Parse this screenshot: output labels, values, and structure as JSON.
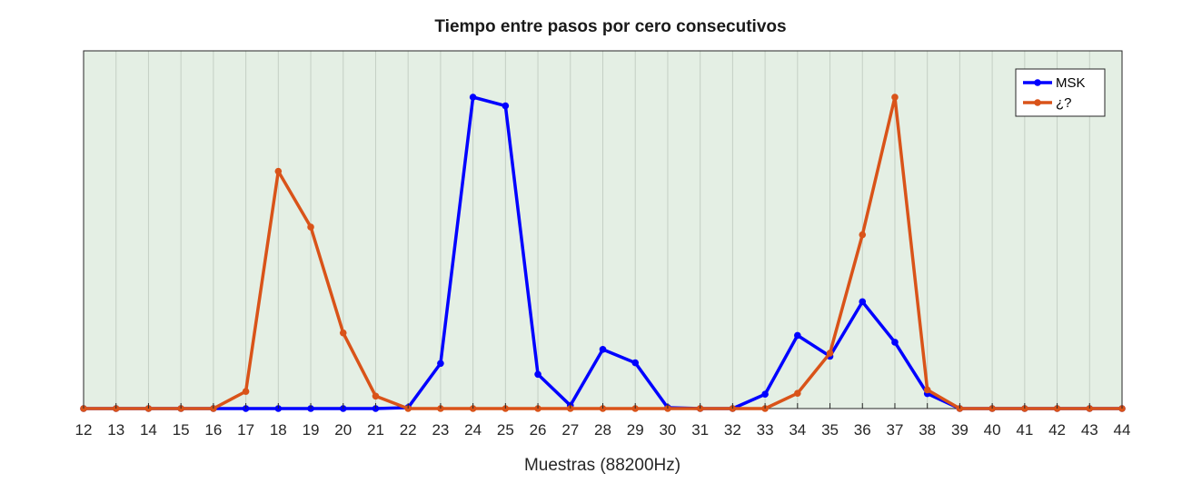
{
  "chart_data": {
    "type": "line",
    "title": "Tiempo entre pasos por cero consecutivos",
    "xlabel": "Muestras (88200Hz)",
    "ylabel": "",
    "xlim": [
      12,
      44
    ],
    "ylim": [
      0,
      1
    ],
    "x": [
      12,
      13,
      14,
      15,
      16,
      17,
      18,
      19,
      20,
      21,
      22,
      23,
      24,
      25,
      26,
      27,
      28,
      29,
      30,
      31,
      32,
      33,
      34,
      35,
      36,
      37,
      38,
      39,
      40,
      41,
      42,
      43,
      44
    ],
    "x_ticks": [
      "12",
      "13",
      "14",
      "15",
      "16",
      "17",
      "18",
      "19",
      "20",
      "21",
      "22",
      "23",
      "24",
      "25",
      "26",
      "27",
      "28",
      "29",
      "30",
      "31",
      "32",
      "33",
      "34",
      "35",
      "36",
      "37",
      "38",
      "39",
      "40",
      "41",
      "42",
      "43",
      "44"
    ],
    "y_ticks_visible": false,
    "grid": "vertical",
    "legend_position": "top-right",
    "plot_background": "#e4efe4",
    "series": [
      {
        "name": "MSK",
        "color": "#0000ff",
        "values": [
          0,
          0,
          0,
          0,
          0,
          0,
          0,
          0,
          0,
          0,
          0.003,
          0.145,
          1.0,
          0.972,
          0.11,
          0.01,
          0.19,
          0.147,
          0.003,
          0,
          0,
          0.046,
          0.235,
          0.168,
          0.343,
          0.213,
          0.048,
          0,
          0,
          0,
          0,
          0,
          0
        ]
      },
      {
        "name": "¿?",
        "color": "#d95319",
        "values": [
          0,
          0,
          0,
          0,
          0,
          0.055,
          0.762,
          0.583,
          0.243,
          0.04,
          0,
          0,
          0,
          0,
          0,
          0,
          0,
          0,
          0,
          0,
          0,
          0,
          0.049,
          0.178,
          0.558,
          1.0,
          0.06,
          0,
          0,
          0,
          0,
          0,
          0
        ]
      }
    ]
  }
}
